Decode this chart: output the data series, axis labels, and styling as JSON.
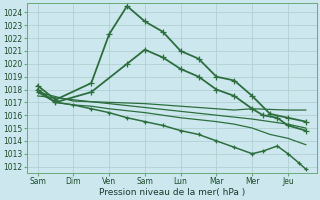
{
  "background_color": "#cce8ee",
  "grid_color": "#aacccc",
  "line_color": "#2d6e3e",
  "xlabel": "Pression niveau de la mer( hPa )",
  "ylim": [
    1011.5,
    1024.7
  ],
  "yticks": [
    1012,
    1013,
    1014,
    1015,
    1016,
    1017,
    1018,
    1019,
    1020,
    1021,
    1022,
    1023,
    1024
  ],
  "xtick_labels": [
    "Sam",
    "Dim",
    "Ven",
    "Sam",
    "Lun",
    "Mar",
    "Mer",
    "Jeu"
  ],
  "xtick_positions": [
    0,
    1,
    2,
    3,
    4,
    5,
    6,
    7
  ],
  "xlim": [
    -0.3,
    7.8
  ],
  "series": [
    {
      "x": [
        0.0,
        0.5,
        1.5,
        2.0,
        2.5,
        3.0,
        3.5,
        4.0,
        4.5,
        5.0,
        5.5,
        6.0,
        6.5,
        7.0,
        7.5
      ],
      "y": [
        1018.3,
        1017.2,
        1018.5,
        1022.3,
        1024.5,
        1023.3,
        1022.5,
        1021.0,
        1020.4,
        1019.0,
        1018.7,
        1017.5,
        1016.1,
        1015.8,
        1015.5
      ],
      "marker": "+",
      "lw": 1.3,
      "ms": 4
    },
    {
      "x": [
        0.0,
        0.5,
        1.5,
        2.5,
        3.0,
        3.5,
        4.0,
        4.5,
        5.0,
        5.5,
        6.0,
        6.3,
        6.7,
        7.0,
        7.5
      ],
      "y": [
        1018.0,
        1017.0,
        1017.8,
        1020.0,
        1021.1,
        1020.5,
        1019.6,
        1019.0,
        1018.0,
        1017.5,
        1016.5,
        1016.0,
        1015.8,
        1015.2,
        1014.8
      ],
      "marker": "+",
      "lw": 1.3,
      "ms": 4
    },
    {
      "x": [
        0.0,
        1.0,
        2.0,
        3.0,
        4.0,
        5.0,
        5.5,
        6.0,
        7.0,
        7.5
      ],
      "y": [
        1017.8,
        1017.1,
        1017.0,
        1016.9,
        1016.7,
        1016.5,
        1016.4,
        1016.5,
        1016.4,
        1016.4
      ],
      "marker": null,
      "lw": 0.9,
      "ms": 2
    },
    {
      "x": [
        0.0,
        1.0,
        2.0,
        3.0,
        4.0,
        5.0,
        6.0,
        7.0,
        7.5
      ],
      "y": [
        1017.5,
        1017.2,
        1016.9,
        1016.6,
        1016.3,
        1016.0,
        1015.7,
        1015.3,
        1015.0
      ],
      "marker": null,
      "lw": 0.9,
      "ms": 2
    },
    {
      "x": [
        0.0,
        0.5,
        1.0,
        1.5,
        2.0,
        3.0,
        4.0,
        5.0,
        5.5,
        6.0,
        6.5,
        7.0,
        7.5
      ],
      "y": [
        1018.0,
        1017.0,
        1016.8,
        1016.7,
        1016.5,
        1016.2,
        1015.8,
        1015.5,
        1015.3,
        1015.0,
        1014.5,
        1014.2,
        1013.7
      ],
      "marker": null,
      "lw": 0.9,
      "ms": 2
    },
    {
      "x": [
        0.0,
        0.5,
        1.0,
        1.5,
        2.0,
        2.5,
        3.0,
        3.5,
        4.0,
        4.5,
        5.0,
        5.5,
        6.0,
        6.3,
        6.7,
        7.0,
        7.3,
        7.5
      ],
      "y": [
        1017.8,
        1017.0,
        1016.8,
        1016.5,
        1016.2,
        1015.8,
        1015.5,
        1015.2,
        1014.8,
        1014.5,
        1014.0,
        1013.5,
        1013.0,
        1013.2,
        1013.6,
        1013.0,
        1012.3,
        1011.8
      ],
      "marker": "+",
      "lw": 1.1,
      "ms": 3
    }
  ],
  "tick_fontsize": 5.5,
  "axis_fontsize": 6.5
}
